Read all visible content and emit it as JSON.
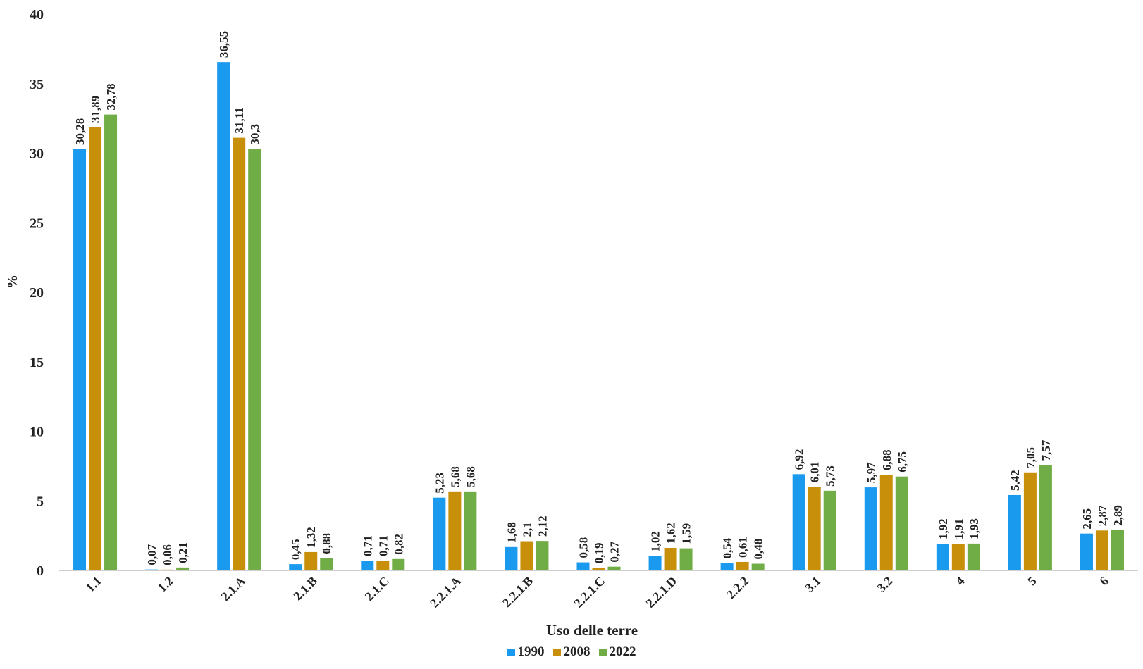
{
  "chart_data": {
    "type": "bar",
    "title": "",
    "xlabel": "Uso delle terre",
    "ylabel": "%",
    "ylim": [
      0,
      40
    ],
    "yticks": [
      0,
      5,
      10,
      15,
      20,
      25,
      30,
      35,
      40
    ],
    "grid": false,
    "legend_position": "bottom",
    "categories": [
      "1.1",
      "1.2",
      "2.1.A",
      "2.1.B",
      "2.1.C",
      "2.2.1.A",
      "2.2.1.B",
      "2.2.1.C",
      "2.2.1.D",
      "2.2.2",
      "3.1",
      "3.2",
      "4",
      "5",
      "6"
    ],
    "series": [
      {
        "name": "1990",
        "color": "#1a9aef",
        "values": [
          30.28,
          0.07,
          36.55,
          0.45,
          0.71,
          5.23,
          1.68,
          0.58,
          1.02,
          0.54,
          6.92,
          5.97,
          1.92,
          5.42,
          2.65
        ],
        "labels": [
          "30,28",
          "0,07",
          "36,55",
          "0,45",
          "0,71",
          "5,23",
          "1,68",
          "0,58",
          "1,02",
          "0,54",
          "6,92",
          "5,97",
          "1,92",
          "5,42",
          "2,65"
        ]
      },
      {
        "name": "2008",
        "color": "#c8900a",
        "values": [
          31.89,
          0.06,
          31.11,
          1.32,
          0.71,
          5.68,
          2.1,
          0.19,
          1.62,
          0.61,
          6.01,
          6.88,
          1.91,
          7.05,
          2.87
        ],
        "labels": [
          "31,89",
          "0,06",
          "31,11",
          "1,32",
          "0,71",
          "5,68",
          "2,1",
          "0,19",
          "1,62",
          "0,61",
          "6,01",
          "6,88",
          "1,91",
          "7,05",
          "2,87"
        ]
      },
      {
        "name": "2022",
        "color": "#70ad47",
        "values": [
          32.78,
          0.21,
          30.3,
          0.88,
          0.82,
          5.68,
          2.12,
          0.27,
          1.59,
          0.48,
          5.73,
          6.75,
          1.93,
          7.57,
          2.89
        ],
        "labels": [
          "32,78",
          "0,21",
          "30,3",
          "0,88",
          "0,82",
          "5,68",
          "2,12",
          "0,27",
          "1,59",
          "0,48",
          "5,73",
          "6,75",
          "1,93",
          "7,57",
          "2,89"
        ]
      }
    ]
  }
}
